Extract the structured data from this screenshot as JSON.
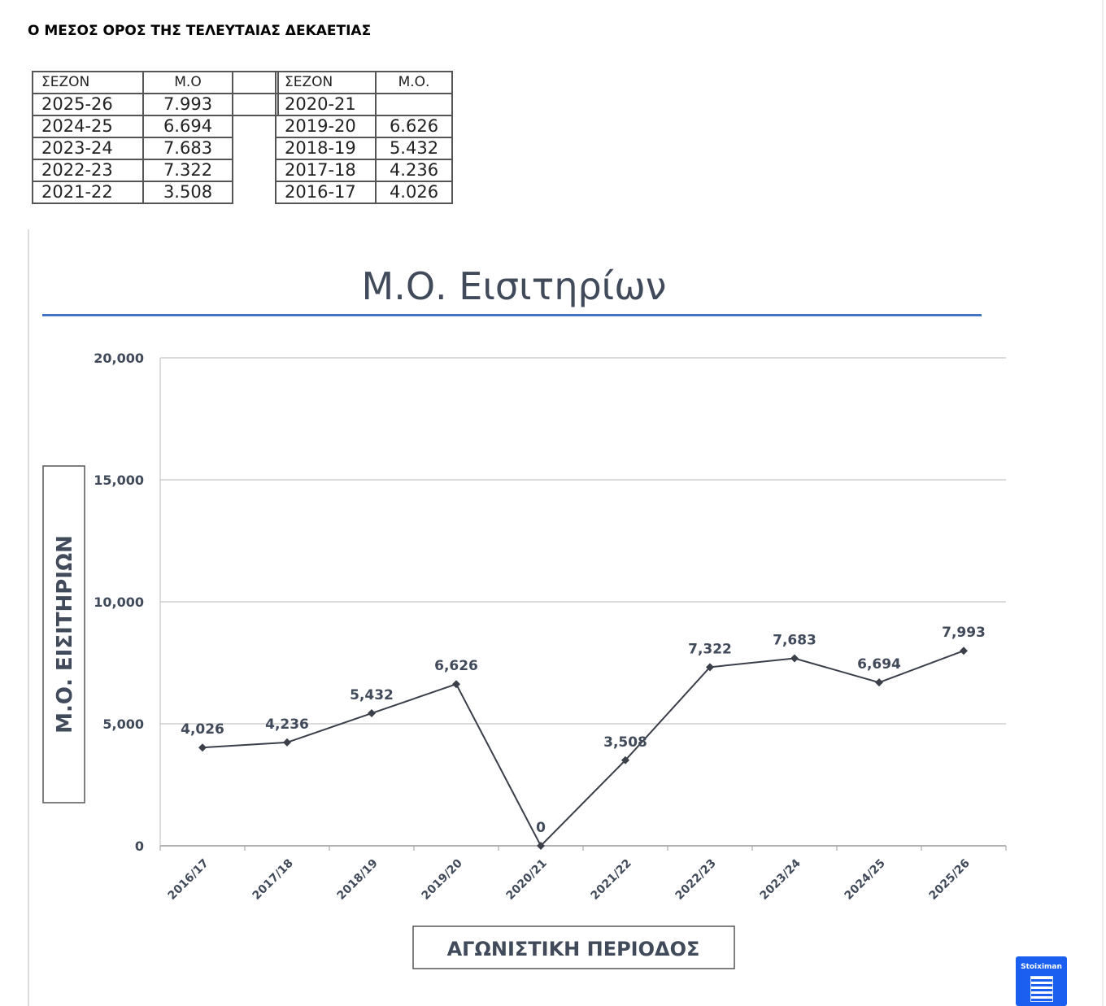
{
  "heading": "Ο ΜΕΣΟΣ ΟΡΟΣ ΤΗΣ ΤΕΛΕΥΤΑΙΑΣ ΔΕΚΑΕΤΙΑΣ",
  "table_left": {
    "headers": [
      "ΣΕΖΟΝ",
      "Μ.Ο"
    ],
    "rows": [
      [
        "2025-26",
        "7.993"
      ],
      [
        "2024-25",
        "6.694"
      ],
      [
        "2023-24",
        "7.683"
      ],
      [
        "2022-23",
        "7.322"
      ],
      [
        "2021-22",
        "3.508"
      ]
    ]
  },
  "table_right": {
    "headers": [
      "ΣΕΖΟΝ",
      "Μ.Ο."
    ],
    "rows": [
      [
        "2020-21",
        ""
      ],
      [
        "2019-20",
        "6.626"
      ],
      [
        "2018-19",
        "5.432"
      ],
      [
        "2017-18",
        "4.236"
      ],
      [
        "2016-17",
        "4.026"
      ]
    ]
  },
  "logo_text": "Stoiximan",
  "chart_data": {
    "type": "line",
    "title": "Μ.Ο. Εισιτηρίων",
    "xlabel": "ΑΓΩΝΙΣΤΙΚΗ ΠΕΡΙΟΔΟΣ",
    "ylabel": "Μ.Ο. ΕΙΣΙΤΗΡΙΩΝ",
    "categories": [
      "2016/17",
      "2017/18",
      "2018/19",
      "2019/20",
      "2020/21",
      "2021/22",
      "2022/23",
      "2023/24",
      "2024/25",
      "2025/26"
    ],
    "values": [
      4026,
      4236,
      5432,
      6626,
      0,
      3508,
      7322,
      7683,
      6694,
      7993
    ],
    "labels": [
      "4,026",
      "4,236",
      "5,432",
      "6,626",
      "0",
      "3,508",
      "7,322",
      "7,683",
      "6,694",
      "7,993"
    ],
    "ylim": [
      0,
      20000
    ],
    "yticks": [
      0,
      5000,
      10000,
      15000,
      20000
    ],
    "ytick_labels": [
      "0",
      "5,000",
      "10,000",
      "15,000",
      "20,000"
    ],
    "grid": true,
    "line_color": "#3a3f4a",
    "title_rule_color": "#4472c4"
  }
}
